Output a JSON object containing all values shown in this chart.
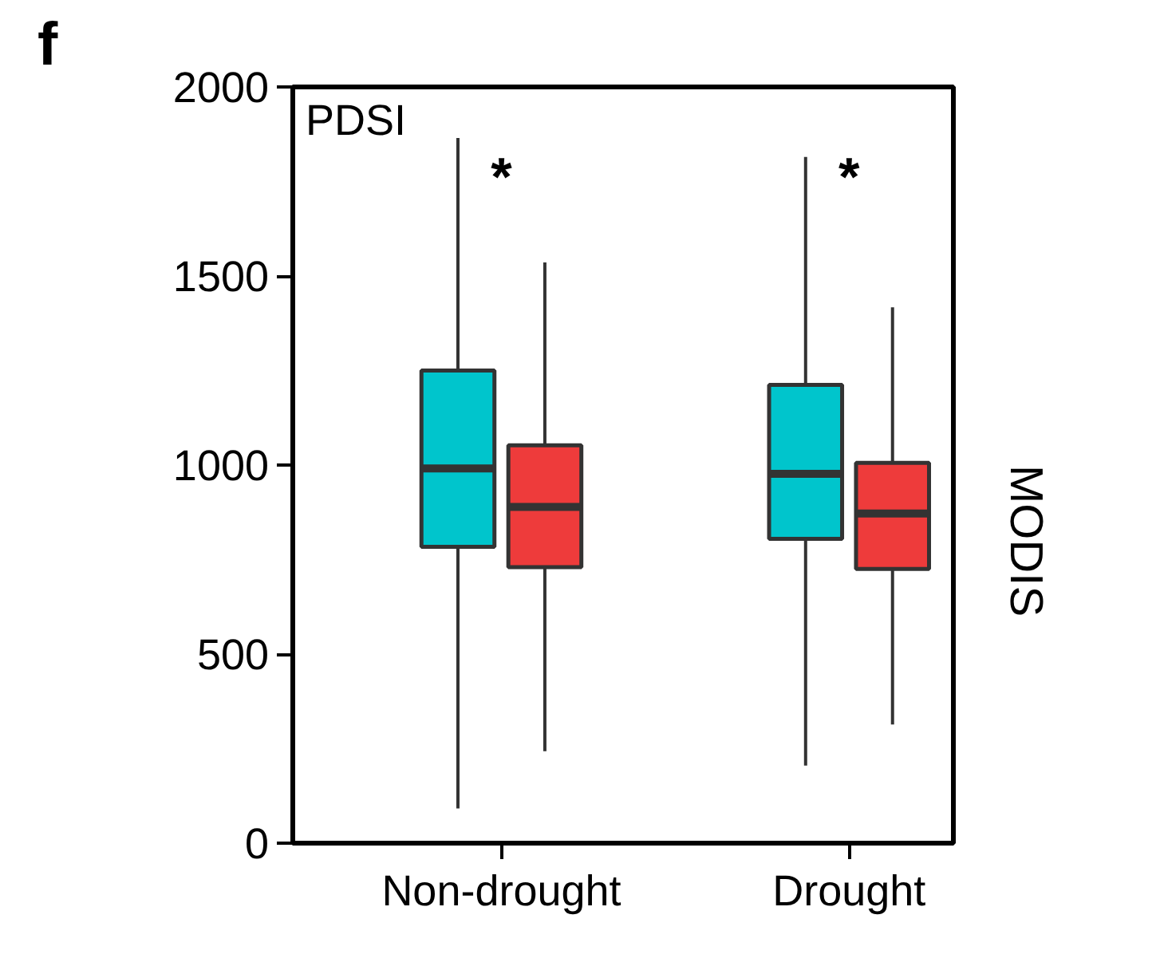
{
  "chart_data": {
    "type": "box",
    "title": "f",
    "ylabel": "MODIS",
    "categories": [
      "Non-drought",
      "Drought"
    ],
    "series": [
      {
        "color": "#00c5cc",
        "boxes": [
          {
            "low": 92,
            "q1": 784,
            "median": 991,
            "q3": 1250,
            "high": 1865
          },
          {
            "low": 205,
            "q1": 805,
            "median": 977,
            "q3": 1212,
            "high": 1815
          }
        ]
      },
      {
        "color": "#ee3b3b",
        "boxes": [
          {
            "low": 243,
            "q1": 730,
            "median": 889,
            "q3": 1052,
            "high": 1536
          },
          {
            "low": 314,
            "q1": 725,
            "median": 872,
            "q3": 1006,
            "high": 1417
          }
        ]
      }
    ],
    "ylim": [
      0,
      2000
    ],
    "yticks": [
      0,
      500,
      1000,
      1500,
      2000
    ],
    "grid": false,
    "annotations": [
      "PDSI",
      "*",
      "*"
    ]
  }
}
